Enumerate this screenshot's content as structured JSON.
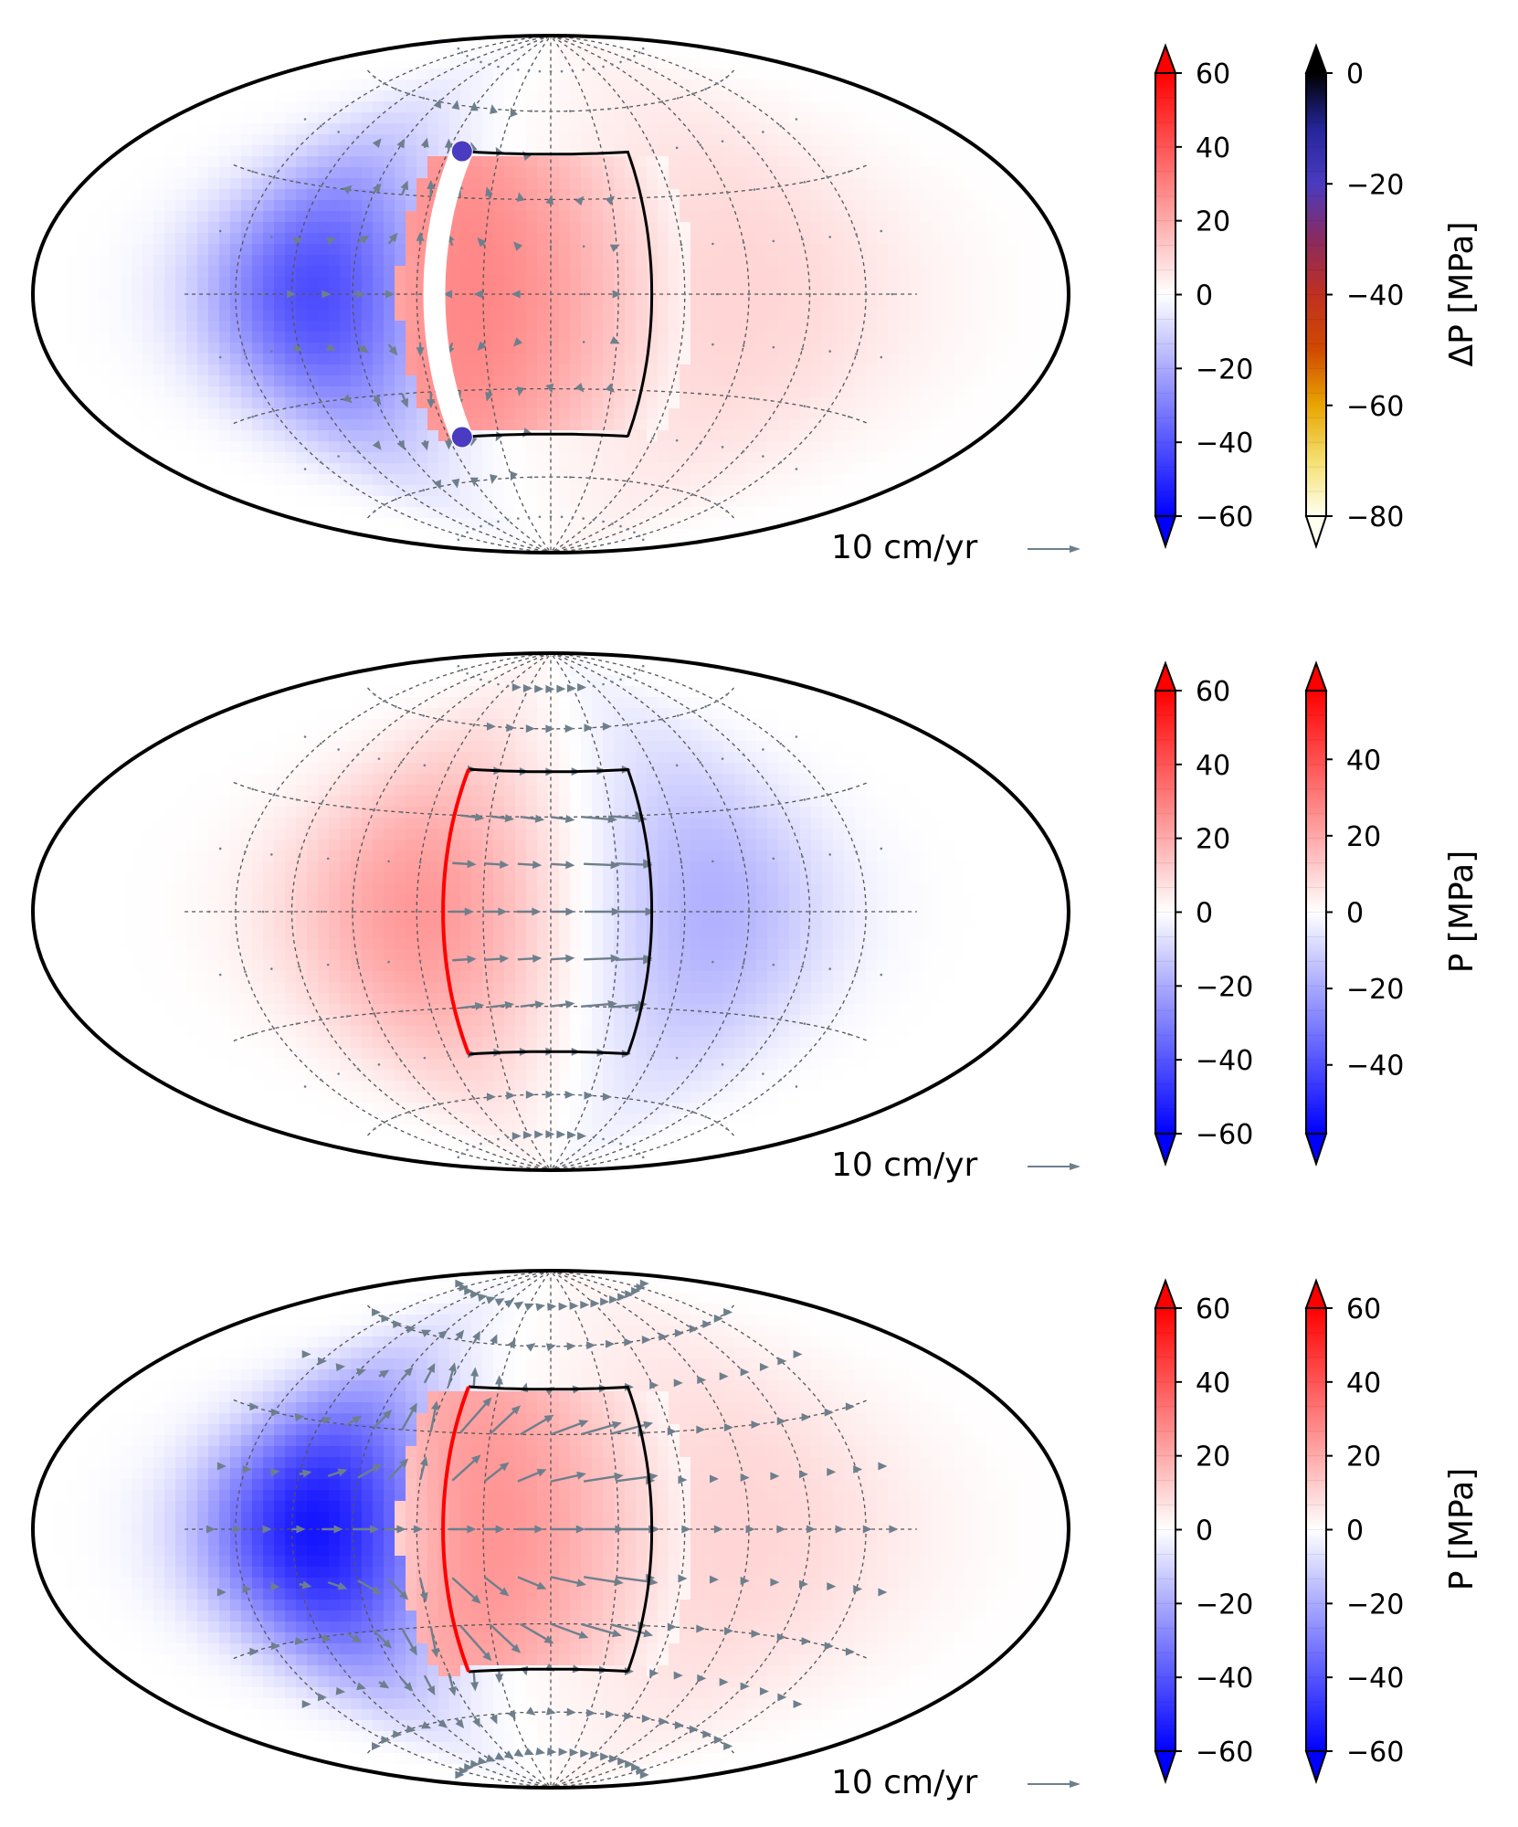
{
  "colors": {
    "bwr_low": "#0000ff",
    "bwr_mid": "#ffffff",
    "bwr_high": "#ff0000",
    "hot_stops": [
      "#fffff0",
      "#f5e070",
      "#e8a500",
      "#d04a00",
      "#c03020",
      "#8a2a60",
      "#4a3bc0",
      "#25259a",
      "#000000"
    ],
    "arrow": "#6e7f8c",
    "outline": "#000000",
    "grid": "#555555",
    "fault_red": "#ff0000"
  },
  "panels": [
    {
      "id": "top",
      "scale_label": "10 cm/yr",
      "field": {
        "amplitude": 58,
        "neg_amplitude": 42,
        "block_level": 0.62
      },
      "cbar_bwr": {
        "ticks": [
          "60",
          "40",
          "20",
          "0",
          "−20",
          "−40",
          "−60"
        ],
        "min": -60,
        "max": 60
      },
      "cbar_second": {
        "type": "hot",
        "ticks": [
          "0",
          "−20",
          "−40",
          "−60",
          "−80"
        ],
        "min": -80,
        "max": 0,
        "title": "ΔP  [MPa]"
      },
      "fault": "gap"
    },
    {
      "id": "middle",
      "scale_label": "10 cm/yr",
      "field": {
        "amplitude": 30,
        "neg_amplitude": 22,
        "block_level": 0.0
      },
      "cbar_bwr": {
        "ticks": [
          "60",
          "40",
          "20",
          "0",
          "−20",
          "−40",
          "−60"
        ],
        "min": -60,
        "max": 60
      },
      "cbar_second": {
        "type": "bwr",
        "ticks": [
          "40",
          "20",
          "0",
          "−20",
          "−40"
        ],
        "min": -58,
        "max": 58,
        "title": "P  [MPa]"
      },
      "fault": "red"
    },
    {
      "id": "bottom",
      "scale_label": "10 cm/yr",
      "field": {
        "amplitude": 62,
        "neg_amplitude": 55,
        "block_level": 0.55
      },
      "cbar_bwr": {
        "ticks": [
          "60",
          "40",
          "20",
          "0",
          "−20",
          "−40",
          "−60"
        ],
        "min": -60,
        "max": 60
      },
      "cbar_second": {
        "type": "bwr",
        "ticks": [
          "60",
          "40",
          "20",
          "0",
          "−20",
          "−40",
          "−60"
        ],
        "min": -60,
        "max": 60,
        "title": "P  [MPa]"
      },
      "fault": "red"
    }
  ]
}
